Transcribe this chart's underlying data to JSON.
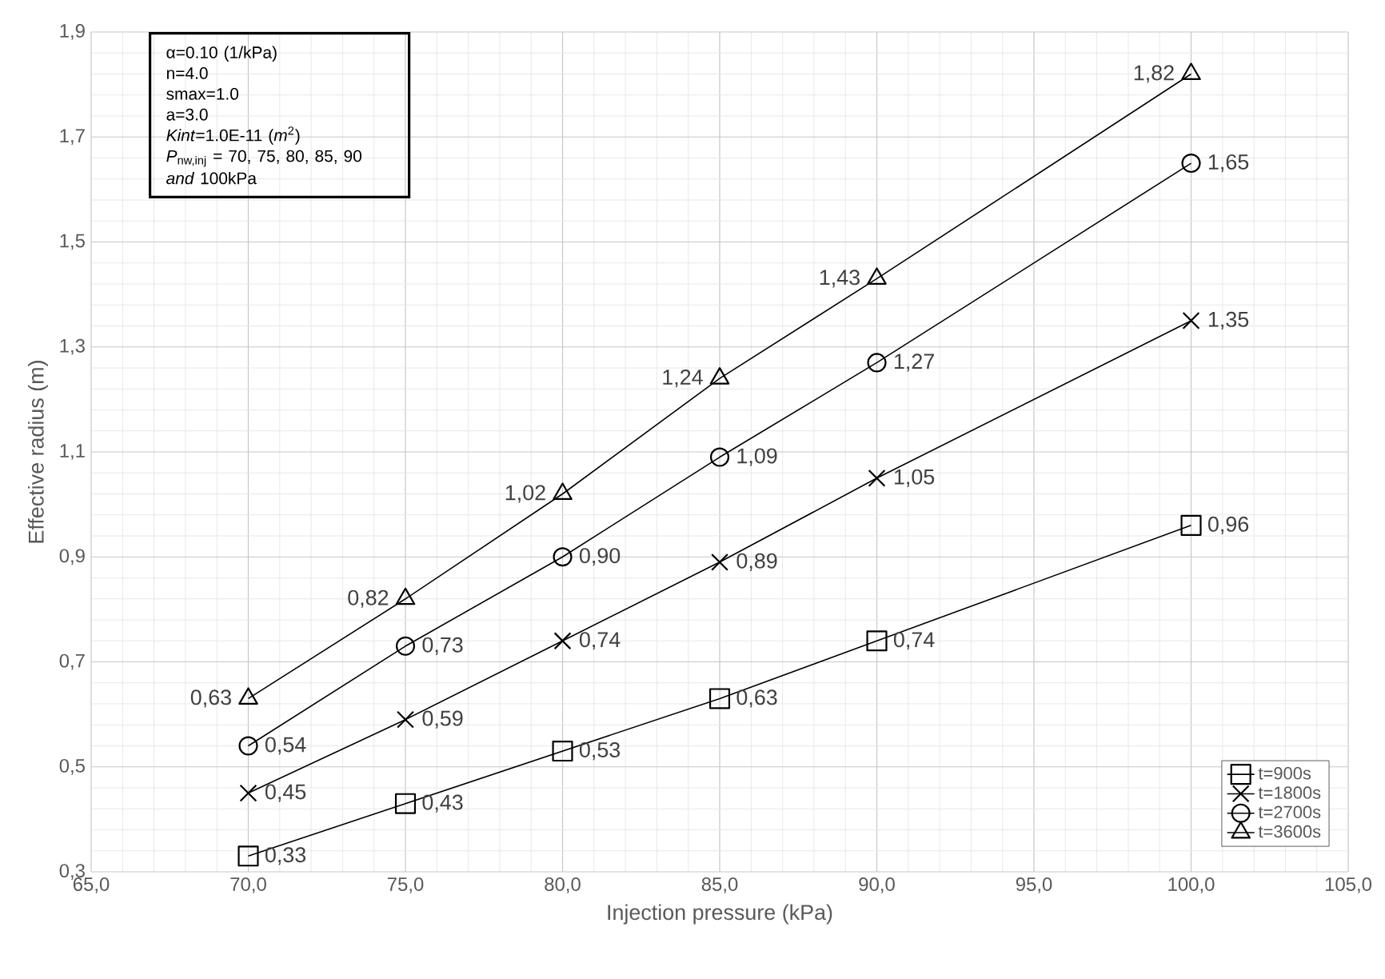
{
  "chart_data": {
    "type": "line",
    "xlabel": "Injection pressure (kPa)",
    "ylabel": "Effective radius (m)",
    "x": [
      70,
      75,
      80,
      85,
      90,
      100
    ],
    "series": [
      {
        "name": "t=900s",
        "color": "#000000",
        "marker": "square",
        "values": [
          0.33,
          0.43,
          0.53,
          0.63,
          0.74,
          0.96
        ],
        "value_labels": [
          "0,33",
          "0,43",
          "0,53",
          "0,63",
          "0,74",
          "0,96"
        ]
      },
      {
        "name": "t=1800s",
        "color": "#000000",
        "marker": "cross",
        "values": [
          0.45,
          0.59,
          0.74,
          0.89,
          1.05,
          1.35
        ],
        "value_labels": [
          "0,45",
          "0,59",
          "0,74",
          "0,89",
          "1,05",
          "1,35"
        ]
      },
      {
        "name": "t=2700s",
        "color": "#000000",
        "marker": "circle",
        "values": [
          0.54,
          0.73,
          0.9,
          1.09,
          1.27,
          1.65
        ],
        "value_labels": [
          "0,54",
          "0,73",
          "0,90",
          "1,09",
          "1,27",
          "1,65"
        ]
      },
      {
        "name": "t=3600s",
        "color": "#000000",
        "marker": "triangle",
        "values": [
          0.63,
          0.82,
          1.02,
          1.24,
          1.43,
          1.82
        ],
        "value_labels": [
          "0,63",
          "0,82",
          "1,02",
          "1,24",
          "1,43",
          "1,82"
        ]
      }
    ],
    "xlim": [
      65,
      105
    ],
    "xticks": [
      {
        "value": 65,
        "label": "65,0"
      },
      {
        "value": 70,
        "label": "70,0"
      },
      {
        "value": 75,
        "label": "75,0"
      },
      {
        "value": 80,
        "label": "80,0"
      },
      {
        "value": 85,
        "label": "85,0"
      },
      {
        "value": 90,
        "label": "90,0"
      },
      {
        "value": 95,
        "label": "95,0"
      },
      {
        "value": 100,
        "label": "100,0"
      },
      {
        "value": 105,
        "label": "105,0"
      }
    ],
    "ylim": [
      0.3,
      1.9
    ],
    "yticks": [
      {
        "value": 0.3,
        "label": "0,3"
      },
      {
        "value": 0.5,
        "label": "0,5"
      },
      {
        "value": 0.7,
        "label": "0,7"
      },
      {
        "value": 0.9,
        "label": "0,9"
      },
      {
        "value": 1.1,
        "label": "1,1"
      },
      {
        "value": 1.3,
        "label": "1,3"
      },
      {
        "value": 1.5,
        "label": "1,5"
      },
      {
        "value": 1.7,
        "label": "1,7"
      },
      {
        "value": 1.9,
        "label": "1,9"
      }
    ],
    "grid": true,
    "legend": "bottom right",
    "line_style": "solid",
    "annotations": [
      "α=0.10 (1/kPa)",
      "n=4.0",
      "smax=1.0",
      "a=3.0",
      "*Kint*=1.0E-11 (*m*$^{2}$)",
      "*P*$_{nw,inj}$ = 70, 75, 80, 85, 90 *and* 100kPa"
    ]
  }
}
